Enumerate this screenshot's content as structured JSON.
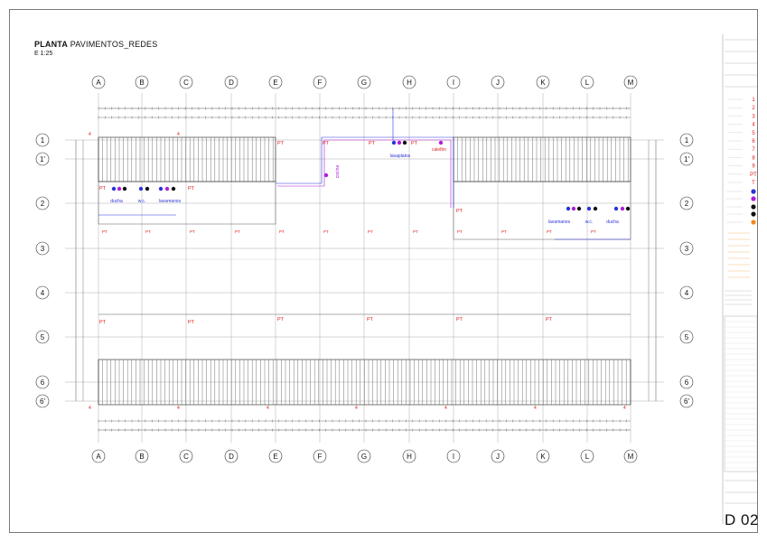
{
  "title": {
    "bold": "PLANTA",
    "rest": " PAVIMENTOS_REDES",
    "scale": "E 1:25"
  },
  "sheet_number": "D 02",
  "grid": {
    "columns": [
      "A",
      "B",
      "C",
      "D",
      "E",
      "F",
      "G",
      "H",
      "I",
      "J",
      "K",
      "L",
      "M"
    ],
    "rows": [
      "1",
      "1'",
      "2",
      "3",
      "4",
      "5",
      "6",
      "6'"
    ]
  },
  "markers": {
    "pt": "PT",
    "four": "4"
  },
  "fixtures": {
    "left": [
      "ducha",
      "w.c.",
      "lavamanos"
    ],
    "center": [
      "lavaplatos",
      "calefón",
      "cocina"
    ],
    "right": [
      "lavamanos",
      "w.c.",
      "ducha"
    ]
  },
  "legend": {
    "numbers": [
      "1",
      "2",
      "3",
      "4",
      "5",
      "6",
      "7",
      "8",
      "9",
      "PT",
      "T"
    ]
  },
  "colors": {
    "grid": "#9a9a9a",
    "red": "#e01b1b",
    "blue": "#2b33d8",
    "purple": "#b01ed8",
    "black": "#111111",
    "orange": "#f08a1c"
  }
}
